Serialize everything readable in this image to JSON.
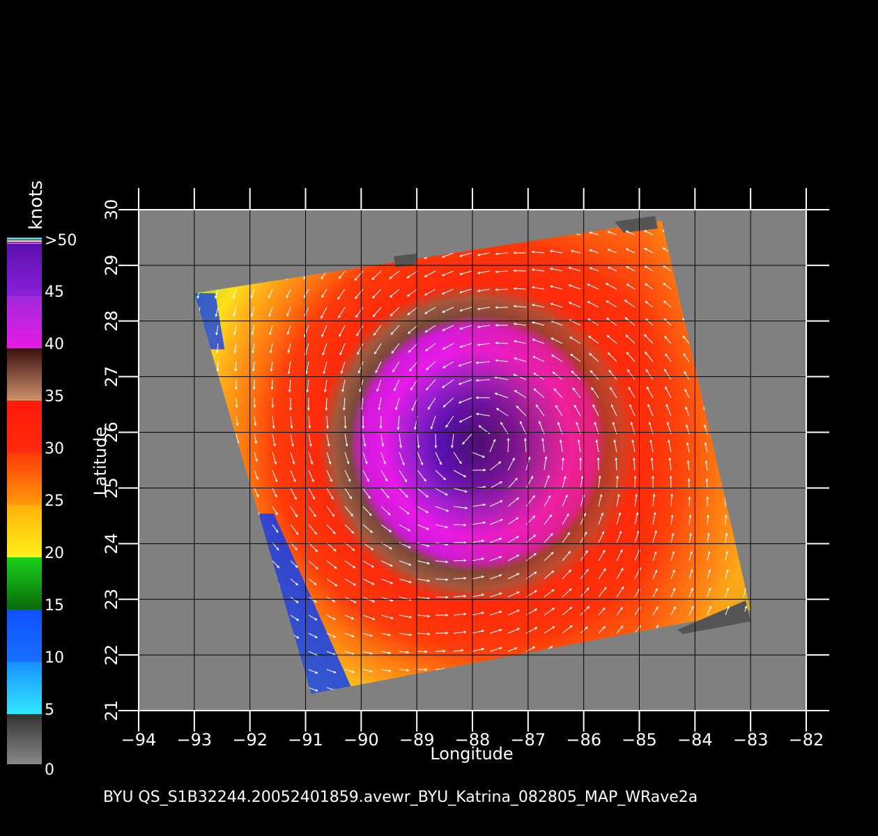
{
  "colorbar": {
    "unit": "knots",
    "tick_labels": [
      ">50",
      "45",
      "40",
      "35",
      "30",
      "25",
      "20",
      "15",
      "10",
      "5",
      "0"
    ],
    "colors": {
      "over_50": "#3fd8ff",
      "45_50": "#6a1fc8",
      "40_45": "#e81ae8",
      "35_40": "#7a4a3a",
      "30_35": "#ff1a0a",
      "25_30": "#ff7a10",
      "20_25": "#ffd21a",
      "15_20": "#1ad21a",
      "10_15": "#1050ff",
      "5_10": "#30e8ff",
      "0_5": "#555555"
    }
  },
  "axes": {
    "xlabel": "Longitude",
    "ylabel": "Latitude",
    "x_ticks": [
      "−94",
      "−93",
      "−92",
      "−91",
      "−90",
      "−89",
      "−88",
      "−87",
      "−86",
      "−85",
      "−84",
      "−83",
      "−82"
    ],
    "y_ticks": [
      "30",
      "29",
      "28",
      "27",
      "26",
      "25",
      "24",
      "23",
      "22",
      "21"
    ],
    "lon_range": [
      -94,
      -82
    ],
    "lat_range": [
      21,
      30
    ]
  },
  "swath": {
    "storm_center_lon": -87.9,
    "storm_center_lat": 25.8,
    "corners_lon_lat": [
      [
        -93.0,
        28.5
      ],
      [
        -84.6,
        29.8
      ],
      [
        -83.0,
        22.8
      ],
      [
        -90.9,
        21.3
      ]
    ],
    "background_color": "#808080",
    "nodata_color": "#555555"
  },
  "caption": "BYU  QS_S1B32244.20052401859.avewr_BYU_Katrina_082805_MAP_WRave2a"
}
